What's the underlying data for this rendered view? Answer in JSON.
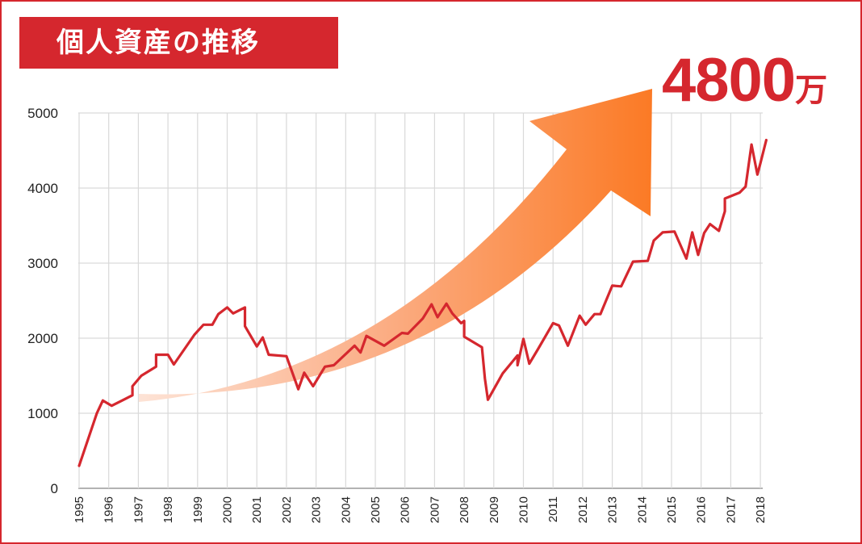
{
  "title": "個人資産の推移",
  "callout": {
    "value": "4800",
    "unit": "万"
  },
  "colors": {
    "accent": "#d5272e",
    "grid": "#d9d9d9",
    "arrow_start": "#fde3d6",
    "arrow_end": "#fb7a25"
  },
  "chart_data": {
    "type": "line",
    "title": "個人資産の推移",
    "xlabel": "",
    "ylabel": "",
    "xlim": [
      1995,
      2018.3
    ],
    "ylim": [
      0,
      5000
    ],
    "y_ticks": [
      "0",
      "1000",
      "2000",
      "3000",
      "4000",
      "5000"
    ],
    "x_ticks": [
      "1995",
      "1996",
      "1997",
      "1998",
      "1999",
      "2000",
      "2001",
      "2002",
      "2003",
      "2004",
      "2005",
      "2006",
      "2007",
      "2008",
      "2009",
      "2010",
      "2011",
      "2012",
      "2013",
      "2014",
      "2015",
      "2016",
      "2017",
      "2018"
    ],
    "grid": true,
    "annotation": "4800万",
    "series": [
      {
        "x": [
          1995.0,
          1995.6,
          1995.8,
          1996.1,
          1996.5,
          1996.8,
          1996.8,
          1997.1,
          1997.6,
          1997.6,
          1997.9,
          1998.0,
          1998.2,
          1998.9,
          1999.2,
          1999.5,
          1999.7,
          2000.0,
          2000.2,
          2000.6,
          2000.6,
          2001.0,
          2001.2,
          2001.4,
          2002.0,
          2002.4,
          2002.6,
          2002.9,
          2003.3,
          2003.6,
          2004.3,
          2004.5,
          2004.7,
          2005.3,
          2005.9,
          2006.1,
          2006.6,
          2006.9,
          2007.1,
          2007.4,
          2007.6,
          2007.9,
          2008.0,
          2008.0,
          2008.6,
          2008.7,
          2008.8,
          2009.3,
          2009.8,
          2009.8,
          2010.0,
          2010.2,
          2010.5,
          2011.0,
          2011.2,
          2011.5,
          2011.9,
          2012.1,
          2012.4,
          2012.6,
          2013.0,
          2013.3,
          2013.7,
          2014.2,
          2014.4,
          2014.7,
          2015.1,
          2015.5,
          2015.7,
          2015.9,
          2016.1,
          2016.3,
          2016.6,
          2016.8,
          2016.8,
          2017.3,
          2017.5,
          2017.7,
          2017.9,
          2018.0,
          2018.2
        ],
        "y": [
          300,
          1000,
          1170,
          1100,
          1180,
          1240,
          1360,
          1500,
          1620,
          1780,
          1780,
          1780,
          1650,
          2050,
          2180,
          2180,
          2320,
          2410,
          2330,
          2410,
          2160,
          1890,
          2010,
          1780,
          1760,
          1320,
          1540,
          1360,
          1620,
          1640,
          1900,
          1810,
          2030,
          1900,
          2070,
          2060,
          2260,
          2450,
          2280,
          2460,
          2330,
          2200,
          2230,
          2020,
          1880,
          1460,
          1180,
          1530,
          1770,
          1640,
          1990,
          1660,
          1860,
          2200,
          2170,
          1900,
          2300,
          2180,
          2320,
          2320,
          2700,
          2690,
          3020,
          3030,
          3300,
          3410,
          3420,
          3060,
          3410,
          3110,
          3400,
          3520,
          3430,
          3690,
          3860,
          3940,
          4020,
          4580,
          4180,
          4330,
          4640
        ]
      }
    ]
  }
}
